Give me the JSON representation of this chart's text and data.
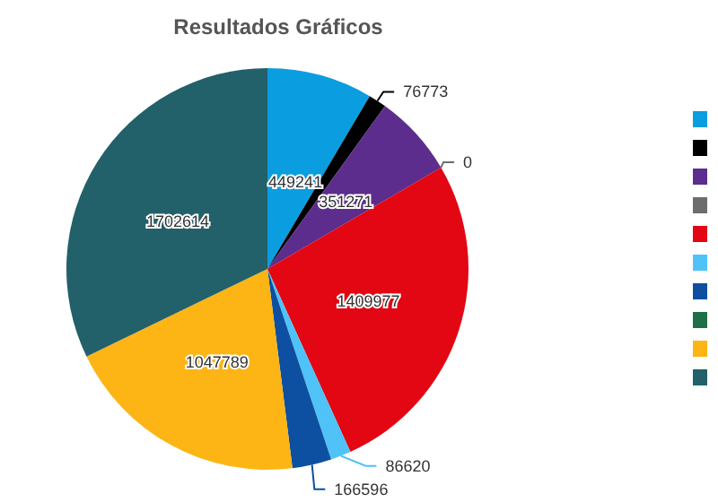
{
  "chart_data": {
    "type": "pie",
    "title": "Resultados Gráficos",
    "categories": [
      null,
      null,
      null,
      null,
      null,
      null,
      null,
      null,
      null,
      null
    ],
    "values": [
      449241,
      76773,
      351271,
      0,
      1409977,
      86620,
      166596,
      0,
      1047789,
      1702614
    ],
    "colors": [
      "#0a9de0",
      "#000000",
      "#5c2d8c",
      "#6d6d6d",
      "#e30613",
      "#4fc3f7",
      "#0d4fa0",
      "#1f6e4a",
      "#fdb515",
      "#22606a"
    ],
    "value_labels": [
      "449241",
      "76773",
      "351271",
      "0",
      "1409977",
      "86620",
      "166596",
      null,
      "1047789",
      "1702614"
    ]
  }
}
